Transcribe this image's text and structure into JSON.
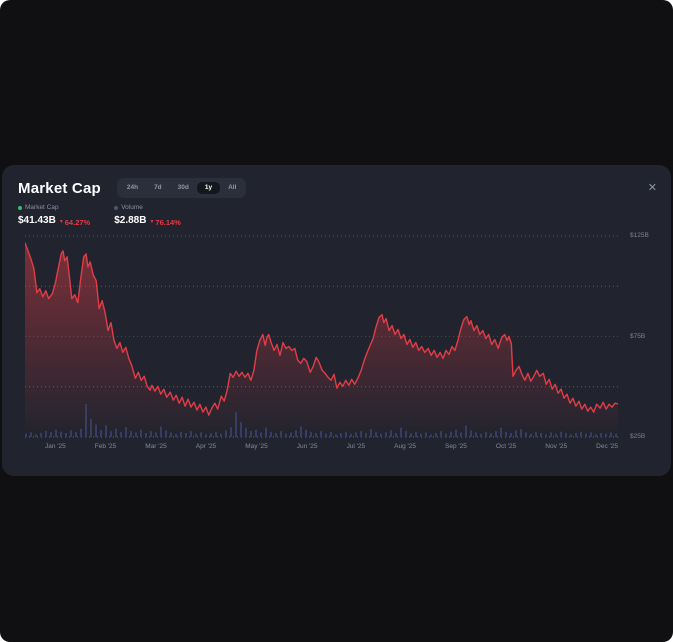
{
  "window": {
    "close_label": "✕"
  },
  "header": {
    "title": "Market Cap",
    "timeframes": [
      {
        "label": "24h",
        "selected": false
      },
      {
        "label": "7d",
        "selected": false
      },
      {
        "label": "30d",
        "selected": false
      },
      {
        "label": "1y",
        "selected": true
      },
      {
        "label": "All",
        "selected": false
      }
    ]
  },
  "legend": {
    "market_cap": {
      "label": "Market Cap",
      "dot_color": "#2bc46a",
      "value": "$41.43B",
      "arrow": "▼",
      "change": "64.27%",
      "change_color": "#ea3943"
    },
    "volume": {
      "label": "Volume",
      "dot_color": "#4d5470",
      "value": "$2.88B",
      "arrow": "▼",
      "change": "76.14%",
      "change_color": "#ea3943"
    }
  },
  "chart_data": {
    "type": "line",
    "title": "Market Cap (1y)",
    "x_labels": [
      "Jan '25",
      "Feb '25",
      "Mar '25",
      "Apr '25",
      "May '25",
      "Jun '25",
      "Jul '25",
      "Aug '25",
      "Sep '25",
      "Oct '25",
      "Nov '25",
      "Dec '25"
    ],
    "y_axis": {
      "unit": "USD billions",
      "range": [
        25,
        125
      ],
      "ticks": [
        {
          "label": "$125B",
          "value": 125
        },
        {
          "label": "$75B",
          "value": 75
        },
        {
          "label": "$25B",
          "value": 25
        }
      ],
      "gridline_values": [
        125,
        100,
        75,
        50,
        25
      ]
    },
    "series": [
      {
        "name": "Market Cap",
        "type": "line",
        "color": "#e23d47",
        "fill_top_color": "rgba(226,61,71,0.5)",
        "points": [
          [
            0,
            121.5
          ],
          [
            0.005,
            117.6
          ],
          [
            0.01,
            113.6
          ],
          [
            0.015,
            108.7
          ],
          [
            0.02,
            96.8
          ],
          [
            0.025,
            98.8
          ],
          [
            0.03,
            94.8
          ],
          [
            0.035,
            97.8
          ],
          [
            0.04,
            93.8
          ],
          [
            0.046,
            96.3
          ],
          [
            0.051,
            101.2
          ],
          [
            0.056,
            108.7
          ],
          [
            0.061,
            116.1
          ],
          [
            0.064,
            117.6
          ],
          [
            0.067,
            112.6
          ],
          [
            0.071,
            114.6
          ],
          [
            0.076,
            101.7
          ],
          [
            0.079,
            93.8
          ],
          [
            0.084,
            95.8
          ],
          [
            0.089,
            91.8
          ],
          [
            0.094,
            103.7
          ],
          [
            0.099,
            114.6
          ],
          [
            0.103,
            116.1
          ],
          [
            0.106,
            109.6
          ],
          [
            0.11,
            112.1
          ],
          [
            0.115,
            105.7
          ],
          [
            0.12,
            102.7
          ],
          [
            0.125,
            88.9
          ],
          [
            0.13,
            92.8
          ],
          [
            0.135,
            86.9
          ],
          [
            0.14,
            78
          ],
          [
            0.145,
            81.9
          ],
          [
            0.15,
            73
          ],
          [
            0.155,
            69.1
          ],
          [
            0.16,
            72
          ],
          [
            0.165,
            67.1
          ],
          [
            0.17,
            69.6
          ],
          [
            0.175,
            64.1
          ],
          [
            0.18,
            60.6
          ],
          [
            0.186,
            54.2
          ],
          [
            0.191,
            57.2
          ],
          [
            0.196,
            53.2
          ],
          [
            0.201,
            55.2
          ],
          [
            0.206,
            50.2
          ],
          [
            0.211,
            48.3
          ],
          [
            0.214,
            50.7
          ],
          [
            0.219,
            47.8
          ],
          [
            0.224,
            50.2
          ],
          [
            0.229,
            46.3
          ],
          [
            0.234,
            48.8
          ],
          [
            0.239,
            44.8
          ],
          [
            0.245,
            47.3
          ],
          [
            0.25,
            43.3
          ],
          [
            0.255,
            45.8
          ],
          [
            0.26,
            41.8
          ],
          [
            0.265,
            44.8
          ],
          [
            0.27,
            40.3
          ],
          [
            0.275,
            43.8
          ],
          [
            0.28,
            39.9
          ],
          [
            0.285,
            42.3
          ],
          [
            0.29,
            38.4
          ],
          [
            0.295,
            41.3
          ],
          [
            0.3,
            37.4
          ],
          [
            0.305,
            39.9
          ],
          [
            0.31,
            35.9
          ],
          [
            0.315,
            39.4
          ],
          [
            0.32,
            41.8
          ],
          [
            0.325,
            38.9
          ],
          [
            0.331,
            45.3
          ],
          [
            0.336,
            42.8
          ],
          [
            0.341,
            48.3
          ],
          [
            0.346,
            56.7
          ],
          [
            0.351,
            54.7
          ],
          [
            0.356,
            57.7
          ],
          [
            0.361,
            55.2
          ],
          [
            0.366,
            57.2
          ],
          [
            0.371,
            54.7
          ],
          [
            0.376,
            56.7
          ],
          [
            0.381,
            53.2
          ],
          [
            0.386,
            58.2
          ],
          [
            0.391,
            68.1
          ],
          [
            0.396,
            73
          ],
          [
            0.401,
            76
          ],
          [
            0.405,
            70.5
          ],
          [
            0.408,
            74.5
          ],
          [
            0.411,
            76
          ],
          [
            0.415,
            72
          ],
          [
            0.42,
            68.1
          ],
          [
            0.425,
            71
          ],
          [
            0.43,
            65.6
          ],
          [
            0.435,
            72
          ],
          [
            0.44,
            69.1
          ],
          [
            0.445,
            70
          ],
          [
            0.45,
            68.1
          ],
          [
            0.455,
            69.1
          ],
          [
            0.46,
            63.1
          ],
          [
            0.465,
            61.6
          ],
          [
            0.47,
            64.1
          ],
          [
            0.475,
            62.6
          ],
          [
            0.481,
            57.2
          ],
          [
            0.486,
            60.1
          ],
          [
            0.491,
            64.6
          ],
          [
            0.496,
            62.1
          ],
          [
            0.501,
            58.2
          ],
          [
            0.506,
            56.7
          ],
          [
            0.511,
            54.7
          ],
          [
            0.516,
            53.2
          ],
          [
            0.521,
            56.2
          ],
          [
            0.526,
            49.3
          ],
          [
            0.531,
            52.2
          ],
          [
            0.536,
            50.2
          ],
          [
            0.541,
            53.2
          ],
          [
            0.546,
            50.7
          ],
          [
            0.551,
            53.7
          ],
          [
            0.556,
            51.2
          ],
          [
            0.562,
            54.7
          ],
          [
            0.567,
            58.2
          ],
          [
            0.572,
            63.1
          ],
          [
            0.577,
            67.1
          ],
          [
            0.582,
            70.5
          ],
          [
            0.587,
            74
          ],
          [
            0.592,
            79.9
          ],
          [
            0.597,
            84.4
          ],
          [
            0.602,
            85.9
          ],
          [
            0.605,
            81.9
          ],
          [
            0.609,
            83.9
          ],
          [
            0.614,
            78
          ],
          [
            0.619,
            80.4
          ],
          [
            0.624,
            76
          ],
          [
            0.629,
            78.5
          ],
          [
            0.634,
            74
          ],
          [
            0.639,
            76
          ],
          [
            0.644,
            71
          ],
          [
            0.649,
            73.5
          ],
          [
            0.654,
            69.6
          ],
          [
            0.659,
            72
          ],
          [
            0.664,
            68.1
          ],
          [
            0.669,
            70
          ],
          [
            0.674,
            67.1
          ],
          [
            0.68,
            69.1
          ],
          [
            0.685,
            65.6
          ],
          [
            0.69,
            68.1
          ],
          [
            0.695,
            64.6
          ],
          [
            0.7,
            67.1
          ],
          [
            0.705,
            64.1
          ],
          [
            0.71,
            68.1
          ],
          [
            0.715,
            66.1
          ],
          [
            0.72,
            70
          ],
          [
            0.725,
            68.1
          ],
          [
            0.73,
            73
          ],
          [
            0.735,
            79
          ],
          [
            0.74,
            83.4
          ],
          [
            0.745,
            84.9
          ],
          [
            0.749,
            80.9
          ],
          [
            0.752,
            82.9
          ],
          [
            0.757,
            78
          ],
          [
            0.762,
            80.4
          ],
          [
            0.767,
            76
          ],
          [
            0.772,
            78
          ],
          [
            0.777,
            74
          ],
          [
            0.782,
            76
          ],
          [
            0.787,
            71
          ],
          [
            0.792,
            73.5
          ],
          [
            0.798,
            69.1
          ],
          [
            0.801,
            72
          ],
          [
            0.804,
            74.5
          ],
          [
            0.809,
            76
          ],
          [
            0.813,
            73
          ],
          [
            0.816,
            75
          ],
          [
            0.82,
            71.5
          ],
          [
            0.823,
            55.2
          ],
          [
            0.828,
            58.2
          ],
          [
            0.833,
            60.1
          ],
          [
            0.838,
            56.2
          ],
          [
            0.843,
            53.2
          ],
          [
            0.848,
            56.7
          ],
          [
            0.853,
            52.7
          ],
          [
            0.858,
            55.2
          ],
          [
            0.863,
            58.2
          ],
          [
            0.868,
            55.2
          ],
          [
            0.874,
            56.7
          ],
          [
            0.879,
            51.2
          ],
          [
            0.884,
            53.7
          ],
          [
            0.889,
            48.8
          ],
          [
            0.894,
            51.2
          ],
          [
            0.899,
            46.8
          ],
          [
            0.904,
            48.8
          ],
          [
            0.909,
            44.3
          ],
          [
            0.914,
            46.3
          ],
          [
            0.919,
            41.8
          ],
          [
            0.924,
            44.3
          ],
          [
            0.929,
            40.3
          ],
          [
            0.934,
            42.8
          ],
          [
            0.939,
            38.9
          ],
          [
            0.944,
            41.3
          ],
          [
            0.949,
            37.9
          ],
          [
            0.954,
            39.9
          ],
          [
            0.959,
            37.4
          ],
          [
            0.964,
            41.3
          ],
          [
            0.97,
            39.4
          ],
          [
            0.975,
            42.3
          ],
          [
            0.98,
            38.9
          ],
          [
            0.985,
            41.3
          ],
          [
            0.99,
            39.9
          ],
          [
            0.995,
            41.8
          ],
          [
            1,
            41.4
          ]
        ]
      },
      {
        "name": "Volume",
        "type": "bar",
        "color": "#363e63",
        "relative_heights": [
          0.1,
          0.14,
          0.08,
          0.12,
          0.18,
          0.15,
          0.22,
          0.16,
          0.12,
          0.2,
          0.15,
          0.25,
          1.0,
          0.55,
          0.38,
          0.22,
          0.35,
          0.18,
          0.25,
          0.15,
          0.3,
          0.18,
          0.14,
          0.22,
          0.12,
          0.18,
          0.14,
          0.32,
          0.2,
          0.14,
          0.1,
          0.16,
          0.12,
          0.18,
          0.1,
          0.14,
          0.08,
          0.12,
          0.16,
          0.1,
          0.2,
          0.3,
          0.75,
          0.45,
          0.28,
          0.18,
          0.22,
          0.14,
          0.28,
          0.16,
          0.12,
          0.18,
          0.1,
          0.14,
          0.2,
          0.32,
          0.22,
          0.16,
          0.12,
          0.18,
          0.1,
          0.15,
          0.08,
          0.12,
          0.16,
          0.1,
          0.14,
          0.18,
          0.12,
          0.24,
          0.16,
          0.1,
          0.14,
          0.2,
          0.12,
          0.28,
          0.18,
          0.12,
          0.16,
          0.1,
          0.14,
          0.08,
          0.12,
          0.18,
          0.1,
          0.16,
          0.22,
          0.14,
          0.34,
          0.2,
          0.14,
          0.1,
          0.16,
          0.12,
          0.18,
          0.28,
          0.16,
          0.12,
          0.2,
          0.24,
          0.14,
          0.1,
          0.16,
          0.12,
          0.08,
          0.14,
          0.1,
          0.16,
          0.12,
          0.08,
          0.12,
          0.16,
          0.1,
          0.14,
          0.08,
          0.12,
          0.1,
          0.14,
          0.1
        ]
      }
    ],
    "legend_position": "top-left",
    "grid": "horizontal-dotted"
  }
}
